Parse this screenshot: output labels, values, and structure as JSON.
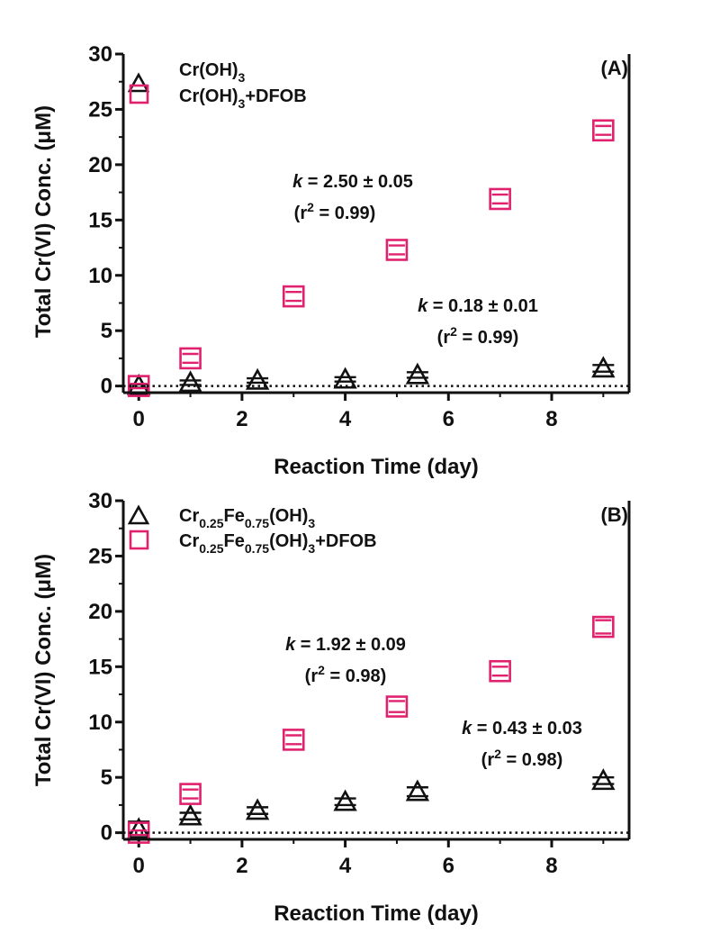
{
  "colors": {
    "axis": "#111111",
    "series_a": "#111111",
    "series_b": "#e0226e"
  },
  "chart_data": [
    {
      "type": "scatter",
      "panel_label": "(A)",
      "xlabel": "Reaction Time (day)",
      "ylabel": "Total Cr(VI) Conc. (μM)",
      "xlim": [
        -0.3,
        9.5
      ],
      "ylim": [
        -0.6,
        30
      ],
      "xticks": [
        0,
        2,
        4,
        6,
        8
      ],
      "yticks": [
        0,
        5,
        10,
        15,
        20,
        25,
        30
      ],
      "zero_line": "dotted",
      "legend_position": "top-left",
      "series": [
        {
          "name": "Cr(OH)3",
          "legend": {
            "base": "Cr(OH)",
            "sub": "3",
            "tail": ""
          },
          "marker": "triangle",
          "color": "#111111",
          "x": [
            0,
            1,
            2.3,
            4,
            5.4,
            9
          ],
          "y": [
            0,
            0.3,
            0.5,
            0.6,
            1.0,
            1.6
          ],
          "err": [
            0.15,
            0.2,
            0.2,
            0.2,
            0.25,
            0.3
          ]
        },
        {
          "name": "Cr(OH)3+DFOB",
          "legend": {
            "base": "Cr(OH)",
            "sub": "3",
            "tail": "+DFOB"
          },
          "marker": "square",
          "color": "#e0226e",
          "x": [
            0,
            1,
            3,
            5,
            7,
            9
          ],
          "y": [
            0,
            2.5,
            8.1,
            12.3,
            16.9,
            23.1
          ],
          "err": [
            0.2,
            0.4,
            0.4,
            0.4,
            0.4,
            0.4
          ]
        }
      ],
      "annotations": [
        {
          "k_label": "k",
          "k_value": " = 2.50 ± 0.05",
          "r_pre": "(r",
          "r_sup": "2",
          "r_post": " = 0.99)"
        },
        {
          "k_label": "k",
          "k_value": " = 0.18 ± 0.01",
          "r_pre": "(r",
          "r_sup": "2",
          "r_post": " = 0.99)"
        }
      ]
    },
    {
      "type": "scatter",
      "panel_label": "(B)",
      "xlabel": "Reaction Time (day)",
      "ylabel": "Total Cr(VI) Conc. (μM)",
      "xlim": [
        -0.3,
        9.5
      ],
      "ylim": [
        -0.6,
        30
      ],
      "xticks": [
        0,
        2,
        4,
        6,
        8
      ],
      "yticks": [
        0,
        5,
        10,
        15,
        20,
        25,
        30
      ],
      "zero_line": "dotted",
      "legend_position": "top-left",
      "series": [
        {
          "name": "Cr0.25Fe0.75(OH)3",
          "legend": {
            "p1": "Cr",
            "s1": "0.25",
            "p2": "Fe",
            "s2": "0.75",
            "p3": "(OH)",
            "s3": "3",
            "tail": ""
          },
          "marker": "triangle",
          "color": "#111111",
          "x": [
            0,
            1,
            2.3,
            4,
            5.4,
            9
          ],
          "y": [
            0.3,
            1.5,
            2.0,
            2.8,
            3.7,
            4.7
          ],
          "err": [
            0.7,
            0.3,
            0.3,
            0.3,
            0.4,
            0.3
          ]
        },
        {
          "name": "Cr0.25Fe0.75(OH)3+DFOB",
          "legend": {
            "p1": "Cr",
            "s1": "0.25",
            "p2": "Fe",
            "s2": "0.75",
            "p3": "(OH)",
            "s3": "3",
            "tail": "+DFOB"
          },
          "marker": "square",
          "color": "#e0226e",
          "x": [
            0,
            1,
            3,
            5,
            7,
            9
          ],
          "y": [
            0,
            3.5,
            8.4,
            11.4,
            14.6,
            18.6
          ],
          "err": [
            0.2,
            0.4,
            0.4,
            0.5,
            0.4,
            0.6
          ]
        }
      ],
      "annotations": [
        {
          "k_label": "k",
          "k_value": " = 1.92 ± 0.09",
          "r_pre": "(r",
          "r_sup": "2",
          "r_post": " = 0.98)"
        },
        {
          "k_label": "k",
          "k_value": " = 0.43 ± 0.03",
          "r_pre": "(r",
          "r_sup": "2",
          "r_post": " = 0.98)"
        }
      ]
    }
  ]
}
